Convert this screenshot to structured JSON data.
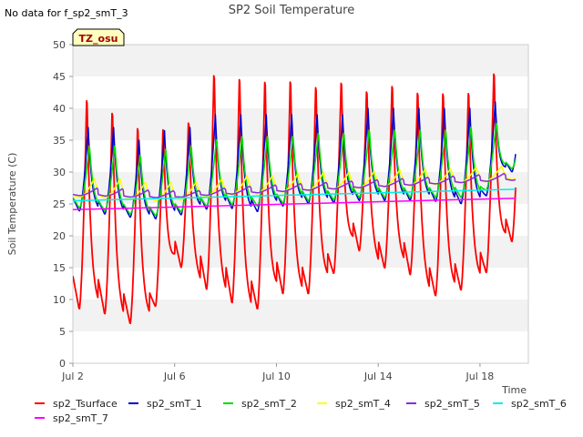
{
  "chart_data": {
    "type": "line",
    "title": "SP2 Soil Temperature",
    "no_data_note": "No data for f_sp2_smT_3",
    "badge": "TZ_osu",
    "xlabel": "Time",
    "ylabel": "Soil Temperature (C)",
    "xlim": [
      2.0,
      19.9
    ],
    "ylim": [
      0,
      50
    ],
    "yticks": [
      0,
      5,
      10,
      15,
      20,
      25,
      30,
      35,
      40,
      45,
      50
    ],
    "xticks": [
      {
        "value": 2,
        "label": "Jul 2"
      },
      {
        "value": 6,
        "label": "Jul 6"
      },
      {
        "value": 10,
        "label": "Jul 10"
      },
      {
        "value": 14,
        "label": "Jul 14"
      },
      {
        "value": 18,
        "label": "Jul 18"
      }
    ],
    "grid": "horizontal bands",
    "legend_position": "bottom",
    "days": [
      2,
      3,
      4,
      5,
      6,
      7,
      8,
      9,
      10,
      11,
      12,
      13,
      14,
      15,
      16,
      17,
      18,
      19
    ],
    "x_end": 19.4,
    "series": [
      {
        "name": "sp2_Tsurface",
        "color": "#ff0000",
        "kind": "diurnal",
        "peak_hour": 0.55,
        "mins": [
          8.5,
          8.2,
          6.0,
          6.5,
          16.0,
          12.0,
          10.0,
          7.5,
          11.0,
          10.2,
          12.5,
          18.5,
          14.8,
          15.0,
          10.3,
          11.0,
          12.5,
          19.0
        ],
        "maxs": [
          43.0,
          41.0,
          38.5,
          38.0,
          39.0,
          47.0,
          46.5,
          46.0,
          46.0,
          45.0,
          45.5,
          44.0,
          45.0,
          44.0,
          44.0,
          44.0,
          47.0,
          45.0
        ]
      },
      {
        "name": "sp2_smT_1",
        "color": "#0000cc",
        "kind": "diurnal",
        "peak_hour": 0.6,
        "mins": [
          24.0,
          23.5,
          23.0,
          22.5,
          23.0,
          24.0,
          24.5,
          23.5,
          24.5,
          25.0,
          25.0,
          25.5,
          25.5,
          25.5,
          25.5,
          25.0,
          25.0,
          30.0
        ],
        "maxs": [
          37.0,
          37.0,
          35.0,
          36.5,
          37.0,
          39.0,
          39.0,
          39.0,
          39.0,
          39.0,
          39.0,
          40.0,
          40.0,
          40.0,
          40.0,
          40.0,
          41.0,
          41.0
        ]
      },
      {
        "name": "sp2_smT_2",
        "color": "#00dd00",
        "kind": "diurnal",
        "peak_hour": 0.65,
        "mins": [
          24.5,
          24.0,
          23.5,
          23.0,
          23.5,
          24.5,
          25.0,
          24.5,
          25.0,
          25.5,
          25.5,
          26.0,
          26.0,
          26.0,
          26.0,
          26.0,
          26.0,
          30.5
        ],
        "maxs": [
          34.5,
          34.5,
          33.0,
          34.0,
          34.5,
          35.5,
          36.0,
          36.0,
          36.0,
          36.5,
          36.5,
          37.0,
          37.0,
          37.0,
          37.0,
          37.5,
          38.0,
          38.0
        ]
      },
      {
        "name": "sp2_smT_4",
        "color": "#ffff00",
        "kind": "diurnal",
        "peak_hour": 0.85,
        "mins": [
          26.0,
          26.0,
          25.8,
          25.5,
          25.5,
          26.0,
          26.3,
          26.5,
          26.8,
          27.0,
          27.2,
          27.4,
          27.6,
          27.8,
          28.0,
          28.2,
          28.5,
          28.8
        ],
        "maxs": [
          29.0,
          29.0,
          28.5,
          28.5,
          28.5,
          29.0,
          29.5,
          29.5,
          29.8,
          30.0,
          30.0,
          30.2,
          30.4,
          30.5,
          30.6,
          30.8,
          31.0,
          31.2
        ]
      },
      {
        "name": "sp2_smT_5",
        "color": "#8a2be2",
        "kind": "diurnal",
        "peak_hour": 0.95,
        "mins": [
          26.3,
          26.3,
          26.1,
          26.0,
          26.0,
          26.3,
          26.5,
          26.7,
          26.9,
          27.1,
          27.3,
          27.5,
          27.7,
          27.9,
          28.1,
          28.3,
          28.5,
          28.7
        ],
        "maxs": [
          27.5,
          27.4,
          27.2,
          27.1,
          27.1,
          27.5,
          27.8,
          28.0,
          28.2,
          28.4,
          28.6,
          28.8,
          29.0,
          29.2,
          29.4,
          29.6,
          29.8,
          30.0
        ]
      },
      {
        "name": "sp2_smT_6",
        "color": "#00eeee",
        "kind": "linear",
        "x": [
          2.0,
          19.4
        ],
        "y": [
          25.5,
          27.3
        ]
      },
      {
        "name": "sp2_smT_7",
        "color": "#ff00ff",
        "kind": "linear",
        "x": [
          2.0,
          19.4
        ],
        "y": [
          24.1,
          25.9
        ]
      }
    ]
  }
}
